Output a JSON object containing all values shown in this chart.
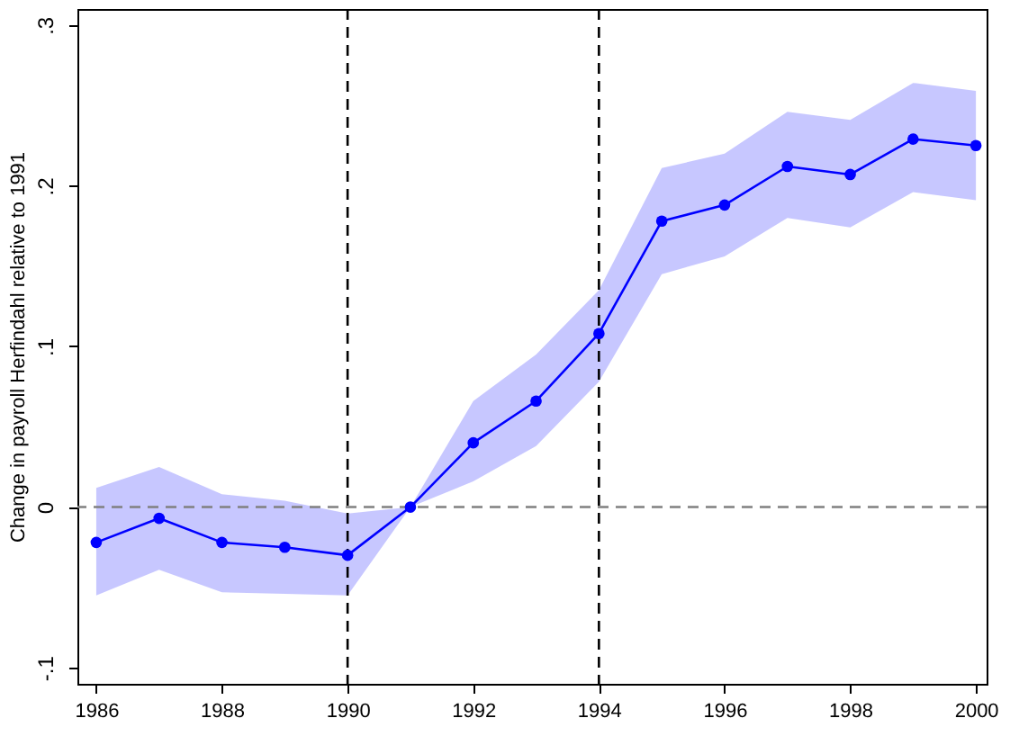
{
  "chart_data": {
    "type": "line",
    "ylabel": "Change in payroll Herfindahl relative to 1991",
    "x": [
      1986,
      1987,
      1988,
      1989,
      1990,
      1991,
      1992,
      1993,
      1994,
      1995,
      1996,
      1997,
      1998,
      1999,
      2000
    ],
    "series": [
      {
        "color": "#0000ff",
        "values": [
          -0.022,
          -0.007,
          -0.022,
          -0.025,
          -0.03,
          0,
          0.04,
          0.066,
          0.108,
          0.178,
          0.188,
          0.212,
          0.207,
          0.229,
          0.225
        ],
        "lower": [
          -0.055,
          -0.039,
          -0.053,
          -0.054,
          -0.055,
          0,
          0.016,
          0.038,
          0.078,
          0.145,
          0.156,
          0.18,
          0.174,
          0.196,
          0.191
        ],
        "upper": [
          0.012,
          0.025,
          0.008,
          0.004,
          -0.004,
          0,
          0.066,
          0.095,
          0.135,
          0.211,
          0.22,
          0.246,
          0.241,
          0.264,
          0.259
        ]
      }
    ],
    "xlim": [
      1985.7,
      2000.17
    ],
    "xticks": [
      1986,
      1988,
      1990,
      1992,
      1994,
      1996,
      1998,
      2000
    ],
    "ylim": [
      -0.11,
      0.31
    ],
    "yticks": [
      {
        "value": -0.1,
        "label": "-.1"
      },
      {
        "value": 0,
        "label": "0"
      },
      {
        "value": 0.1,
        "label": ".1"
      },
      {
        "value": 0.2,
        "label": ".2"
      },
      {
        "value": 0.3,
        "label": ".3"
      }
    ],
    "ref_lines": [
      {
        "axis": "x",
        "value": 1990,
        "color": "#000000",
        "line_style": "dashed"
      },
      {
        "axis": "x",
        "value": 1994,
        "color": "#000000",
        "line_style": "dashed"
      },
      {
        "axis": "y",
        "value": 0,
        "color": "#808080",
        "line_style": "dashed"
      }
    ],
    "marker": "circle",
    "line_style": "solid",
    "grid": false
  }
}
